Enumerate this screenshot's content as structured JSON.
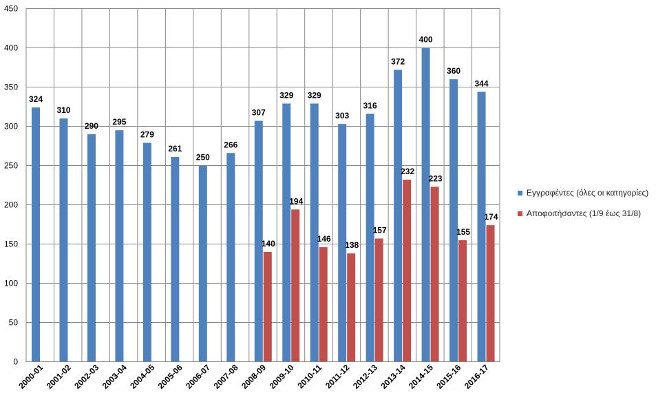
{
  "chart_data": {
    "type": "bar",
    "categories": [
      "2000-01",
      "2001-02",
      "2002-03",
      "2003-04",
      "2004-05",
      "2005-06",
      "2006-07",
      "2007-08",
      "2008-09",
      "2009-10",
      "2010-11",
      "2011-12",
      "2012-13",
      "2013-14",
      "2014-15",
      "2015-16",
      "2016-17"
    ],
    "series": [
      {
        "name": "Εγγραφέντες (όλες οι κατηγορίες)",
        "color": "#4F81BD",
        "values": [
          324,
          310,
          290,
          295,
          279,
          261,
          250,
          266,
          307,
          329,
          329,
          303,
          316,
          372,
          400,
          360,
          344
        ]
      },
      {
        "name": "Αποφοιτήσαντες (1/9 έως 31/8)",
        "color": "#C0504D",
        "values": [
          null,
          null,
          null,
          null,
          null,
          null,
          null,
          null,
          140,
          194,
          146,
          138,
          157,
          232,
          223,
          155,
          174
        ]
      }
    ],
    "ylim": [
      0,
      450
    ],
    "yticks": [
      0,
      50,
      100,
      150,
      200,
      250,
      300,
      350,
      400,
      450
    ],
    "grid": true,
    "legend": "right"
  }
}
